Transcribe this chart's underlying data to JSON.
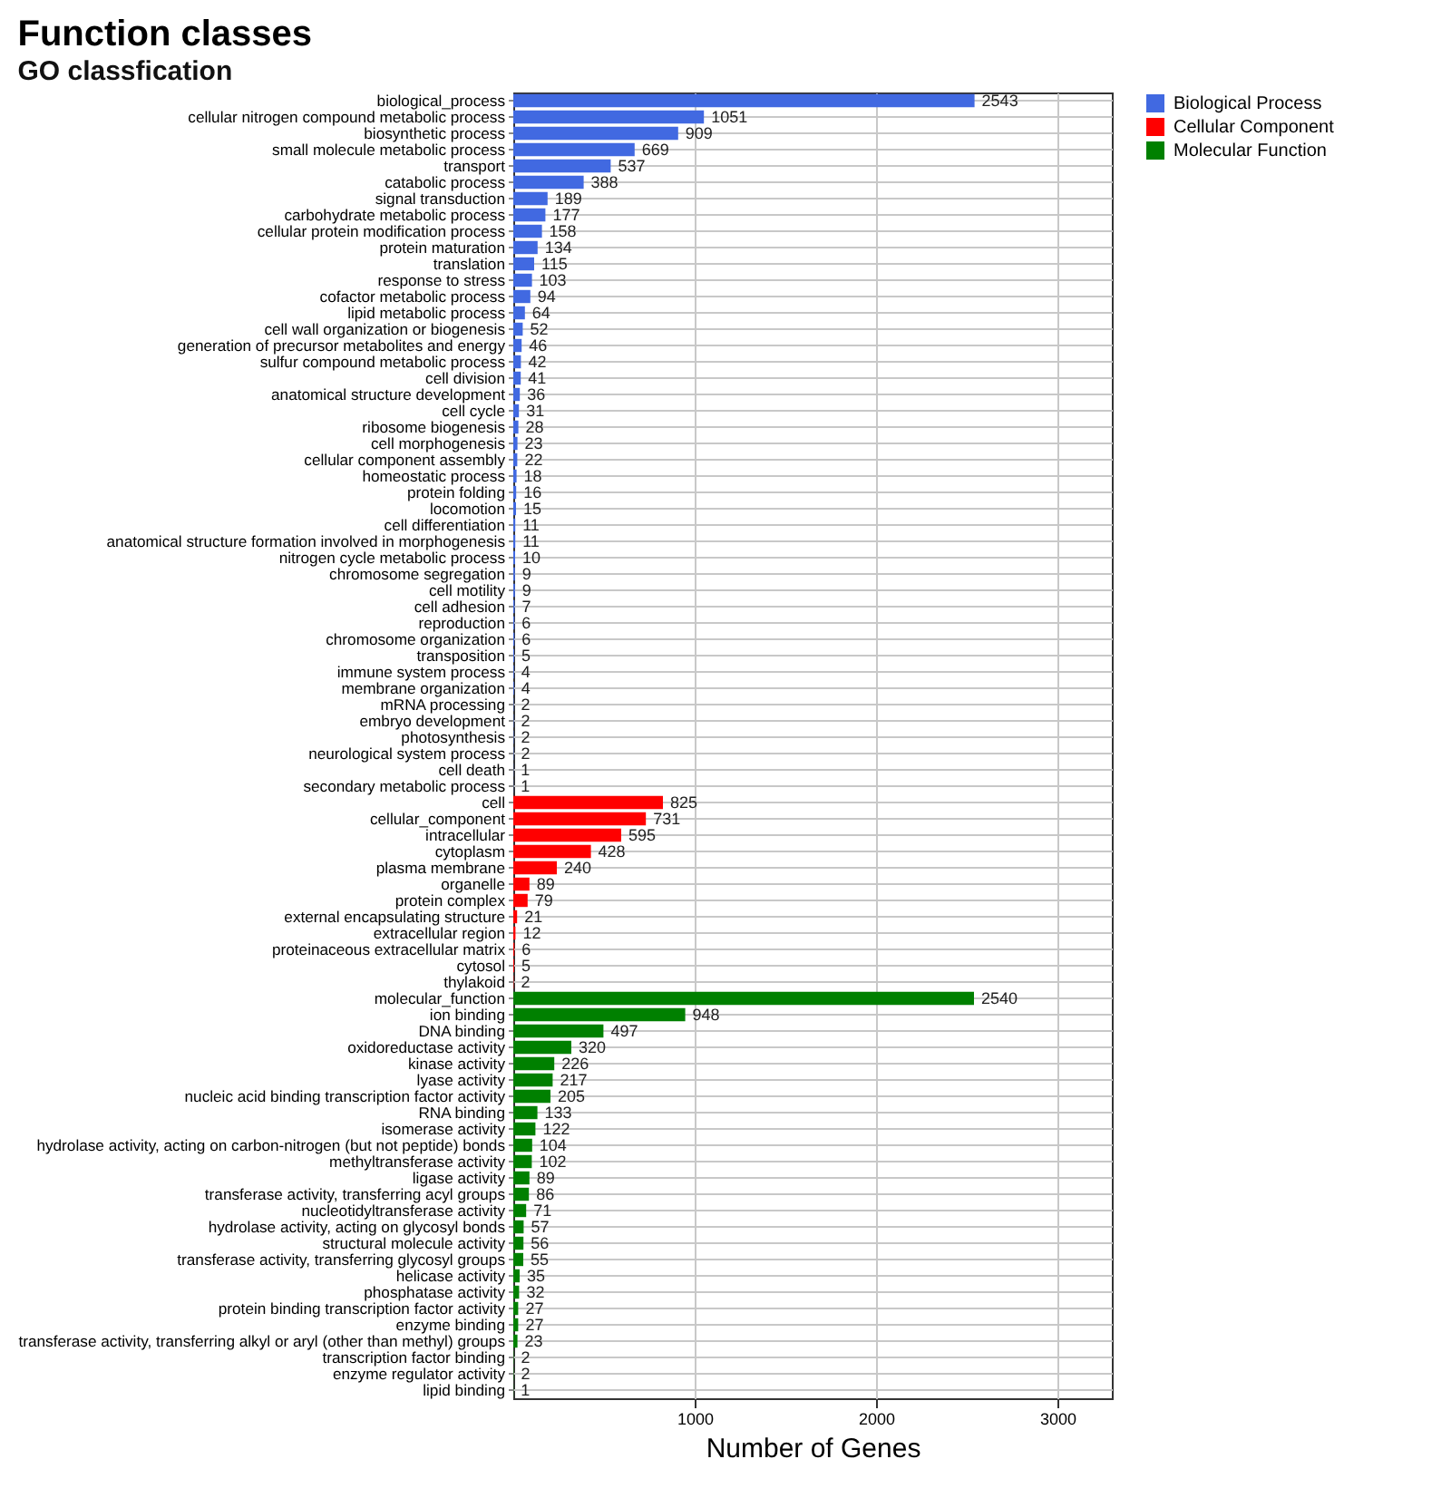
{
  "chart_data": {
    "type": "bar",
    "orientation": "horizontal",
    "title": "Function classes",
    "subtitle": "GO classfication",
    "xlabel": "Number of Genes",
    "categories": [
      "biological_process",
      "cellular nitrogen compound metabolic process",
      "biosynthetic process",
      "small molecule metabolic process",
      "transport",
      "catabolic process",
      "signal transduction",
      "carbohydrate metabolic process",
      "cellular protein modification process",
      "protein maturation",
      "translation",
      "response to stress",
      "cofactor metabolic process",
      "lipid metabolic process",
      "cell wall organization or biogenesis",
      "generation of precursor metabolites and energy",
      "sulfur compound metabolic process",
      "cell division",
      "anatomical structure development",
      "cell cycle",
      "ribosome biogenesis",
      "cell morphogenesis",
      "cellular component assembly",
      "homeostatic process",
      "protein folding",
      "locomotion",
      "cell differentiation",
      "anatomical structure formation involved in morphogenesis",
      "nitrogen cycle metabolic process",
      "chromosome segregation",
      "cell motility",
      "cell adhesion",
      "reproduction",
      "chromosome organization",
      "transposition",
      "immune system process",
      "membrane organization",
      "mRNA processing",
      "embryo development",
      "photosynthesis",
      "neurological system process",
      "cell death",
      "secondary metabolic process",
      "cell",
      "cellular_component",
      "intracellular",
      "cytoplasm",
      "plasma membrane",
      "organelle",
      "protein complex",
      "external encapsulating structure",
      "extracellular region",
      "proteinaceous extracellular matrix",
      "cytosol",
      "thylakoid",
      "molecular_function",
      "ion binding",
      "DNA binding",
      "oxidoreductase activity",
      "kinase activity",
      "lyase activity",
      "nucleic acid binding transcription factor activity",
      "RNA binding",
      "isomerase activity",
      "hydrolase activity, acting on carbon-nitrogen (but not peptide) bonds",
      "methyltransferase activity",
      "ligase activity",
      "transferase activity, transferring acyl groups",
      "nucleotidyltransferase activity",
      "hydrolase activity, acting on glycosyl bonds",
      "structural molecule activity",
      "transferase activity, transferring glycosyl groups",
      "helicase activity",
      "phosphatase activity",
      "protein binding transcription factor activity",
      "enzyme binding",
      "transferase activity, transferring alkyl or aryl (other than methyl) groups",
      "transcription factor binding",
      "enzyme regulator activity",
      "lipid binding"
    ],
    "series": [
      {
        "name": "Biological Process",
        "color": "#4169e1",
        "values": [
          2543,
          1051,
          909,
          669,
          537,
          388,
          189,
          177,
          158,
          134,
          115,
          103,
          94,
          64,
          52,
          46,
          42,
          41,
          36,
          31,
          28,
          23,
          22,
          18,
          16,
          15,
          11,
          11,
          10,
          9,
          9,
          7,
          6,
          6,
          5,
          4,
          4,
          2,
          2,
          2,
          2,
          1,
          1,
          null,
          null,
          null,
          null,
          null,
          null,
          null,
          null,
          null,
          null,
          null,
          null,
          null,
          null,
          null,
          null,
          null,
          null,
          null,
          null,
          null,
          null,
          null,
          null,
          null,
          null,
          null,
          null,
          null,
          null,
          null,
          null,
          null,
          null,
          null,
          null,
          null
        ]
      },
      {
        "name": "Cellular Component",
        "color": "#ff0000",
        "values": [
          null,
          null,
          null,
          null,
          null,
          null,
          null,
          null,
          null,
          null,
          null,
          null,
          null,
          null,
          null,
          null,
          null,
          null,
          null,
          null,
          null,
          null,
          null,
          null,
          null,
          null,
          null,
          null,
          null,
          null,
          null,
          null,
          null,
          null,
          null,
          null,
          null,
          null,
          null,
          null,
          null,
          null,
          null,
          825,
          731,
          595,
          428,
          240,
          89,
          79,
          21,
          12,
          6,
          5,
          2,
          null,
          null,
          null,
          null,
          null,
          null,
          null,
          null,
          null,
          null,
          null,
          null,
          null,
          null,
          null,
          null,
          null,
          null,
          null,
          null,
          null,
          null,
          null,
          null,
          null
        ]
      },
      {
        "name": "Molecular Function",
        "color": "#008000",
        "values": [
          null,
          null,
          null,
          null,
          null,
          null,
          null,
          null,
          null,
          null,
          null,
          null,
          null,
          null,
          null,
          null,
          null,
          null,
          null,
          null,
          null,
          null,
          null,
          null,
          null,
          null,
          null,
          null,
          null,
          null,
          null,
          null,
          null,
          null,
          null,
          null,
          null,
          null,
          null,
          null,
          null,
          null,
          null,
          null,
          null,
          null,
          null,
          null,
          null,
          null,
          null,
          null,
          null,
          null,
          null,
          2540,
          948,
          497,
          320,
          226,
          217,
          205,
          133,
          122,
          104,
          102,
          89,
          86,
          71,
          57,
          56,
          55,
          35,
          32,
          27,
          27,
          23,
          2,
          2,
          1
        ]
      }
    ],
    "xlim": [
      0,
      3300
    ],
    "xticks": [
      1000,
      2000,
      3000
    ],
    "grid": true,
    "data_labels": true,
    "legend": "right"
  }
}
